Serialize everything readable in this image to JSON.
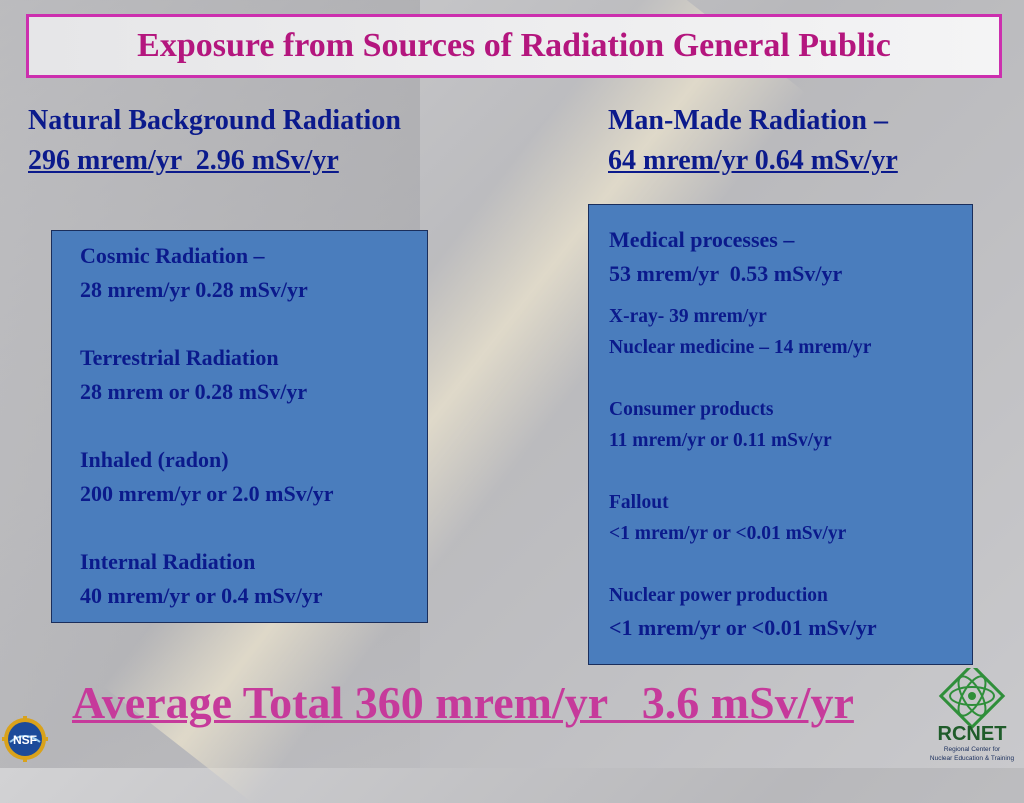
{
  "title": "Exposure from Sources of Radiation General Public",
  "natural": {
    "heading": "Natural Background Radiation",
    "total": "296 mrem/yr  2.96 mSv/yr",
    "items": [
      {
        "name": "Cosmic Radiation –",
        "value": "28 mrem/yr 0.28 mSv/yr"
      },
      {
        "name": "Terrestrial Radiation",
        "value": "28 mrem or 0.28 mSv/yr"
      },
      {
        "name": "Inhaled (radon)",
        "value": "200 mrem/yr or 2.0 mSv/yr"
      },
      {
        "name": "Internal Radiation",
        "value": "40 mrem/yr or 0.4 mSv/yr"
      }
    ]
  },
  "manmade": {
    "heading": "Man-Made Radiation –",
    "total": "64 mrem/yr 0.64 mSv/yr",
    "medical": {
      "name": "Medical processes –",
      "value": "53 mrem/yr  0.53 mSv/yr"
    },
    "medical_detail": [
      "X-ray- 39 mrem/yr",
      "Nuclear medicine – 14 mrem/yr"
    ],
    "items": [
      {
        "name": "Consumer products",
        "value": "11 mrem/yr or 0.11 mSv/yr"
      },
      {
        "name": "Fallout",
        "value": "<1 mrem/yr or <0.01 mSv/yr"
      },
      {
        "name": "Nuclear power production",
        "value": "<1 mrem/yr or <0.01 mSv/yr"
      }
    ]
  },
  "average_total": "Average Total 360 mrem/yr   3.6 mSv/yr",
  "logos": {
    "nsf_text": "NSF",
    "rcnet_text": "RCNET",
    "rcnet_subtitle": [
      "Regional Center for",
      "Nuclear Education & Training"
    ]
  },
  "colors": {
    "title": "#b4167e",
    "title_border": "#cc2fae",
    "heading": "#0b1a8c",
    "panel": "#4a7dbd",
    "total": "#c63a9b"
  }
}
